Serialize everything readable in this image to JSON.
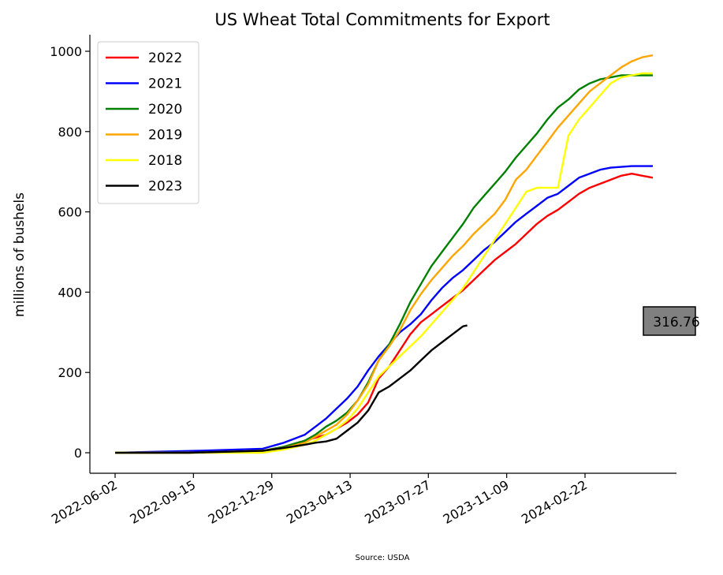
{
  "chart_data": {
    "type": "line",
    "title": "US Wheat Total Commitments for Export",
    "ylabel": "millions of bushels",
    "source": "Source: USDA",
    "ylim": [
      -45,
      1040
    ],
    "yticks": [
      0,
      200,
      400,
      600,
      800,
      1000
    ],
    "xlim": [
      0,
      51
    ],
    "xticks": [
      {
        "x": 0,
        "label": "2022-06-02"
      },
      {
        "x": 7.43,
        "label": "2022-09-15"
      },
      {
        "x": 14.86,
        "label": "2022-12-29"
      },
      {
        "x": 22.29,
        "label": "2023-04-13"
      },
      {
        "x": 29.71,
        "label": "2023-07-27"
      },
      {
        "x": 37.14,
        "label": "2023-11-09"
      },
      {
        "x": 44.57,
        "label": "2024-02-22"
      }
    ],
    "legend_position": "upper-left",
    "series": [
      {
        "name": "2022",
        "color": "#ff0000",
        "x": [
          0,
          7,
          14,
          16,
          18,
          20,
          21,
          22,
          23,
          24,
          25,
          26,
          27,
          28,
          29,
          30,
          31,
          32,
          33,
          34,
          35,
          36,
          37,
          38,
          39,
          40,
          41,
          42,
          43,
          44,
          45,
          46,
          47,
          48,
          49,
          50,
          51
        ],
        "y": [
          0,
          0,
          5,
          15,
          30,
          45,
          60,
          75,
          95,
          125,
          185,
          215,
          255,
          295,
          325,
          345,
          365,
          385,
          405,
          430,
          455,
          480,
          500,
          520,
          545,
          570,
          590,
          605,
          625,
          645,
          660,
          670,
          680,
          690,
          695,
          690,
          685
        ]
      },
      {
        "name": "2021",
        "color": "#0000ff",
        "x": [
          0,
          8,
          14,
          16,
          17,
          18,
          19,
          20,
          21,
          22,
          23,
          24,
          25,
          26,
          27,
          28,
          29,
          30,
          31,
          32,
          33,
          34,
          35,
          36,
          37,
          38,
          39,
          40,
          41,
          42,
          43,
          44,
          45,
          46,
          47,
          48,
          49,
          50,
          51
        ],
        "y": [
          0,
          5,
          10,
          25,
          35,
          45,
          65,
          85,
          110,
          135,
          165,
          205,
          240,
          270,
          300,
          320,
          345,
          380,
          410,
          435,
          455,
          480,
          505,
          525,
          550,
          575,
          595,
          615,
          635,
          645,
          665,
          685,
          695,
          705,
          710,
          712,
          714,
          714,
          714
        ]
      },
      {
        "name": "2020",
        "color": "#008000",
        "x": [
          0,
          7,
          14,
          16,
          18,
          19,
          20,
          21,
          22,
          23,
          24,
          25,
          26,
          27,
          28,
          29,
          30,
          31,
          32,
          33,
          34,
          35,
          36,
          37,
          38,
          39,
          40,
          41,
          42,
          43,
          44,
          45,
          46,
          47,
          48,
          49,
          50,
          51
        ],
        "y": [
          0,
          0,
          5,
          15,
          30,
          45,
          65,
          80,
          100,
          130,
          175,
          230,
          270,
          320,
          375,
          420,
          465,
          500,
          535,
          570,
          610,
          640,
          670,
          700,
          735,
          765,
          795,
          830,
          860,
          880,
          905,
          920,
          930,
          935,
          940,
          940,
          940,
          940
        ]
      },
      {
        "name": "2019",
        "color": "#ffa500",
        "x": [
          0,
          7,
          14,
          16,
          18,
          19,
          20,
          21,
          22,
          23,
          24,
          25,
          26,
          27,
          28,
          29,
          30,
          31,
          32,
          33,
          34,
          35,
          36,
          37,
          38,
          39,
          40,
          41,
          42,
          43,
          44,
          45,
          46,
          47,
          48,
          49,
          50,
          51
        ],
        "y": [
          0,
          0,
          5,
          12,
          25,
          40,
          55,
          70,
          95,
          130,
          170,
          230,
          265,
          305,
          355,
          395,
          430,
          460,
          490,
          515,
          545,
          570,
          595,
          630,
          680,
          705,
          740,
          775,
          810,
          840,
          870,
          900,
          920,
          940,
          960,
          975,
          985,
          990
        ]
      },
      {
        "name": "2018",
        "color": "#ffff00",
        "x": [
          0,
          7,
          14,
          16,
          18,
          19,
          20,
          21,
          22,
          23,
          24,
          25,
          26,
          27,
          28,
          29,
          30,
          31,
          32,
          33,
          34,
          35,
          36,
          37,
          38,
          39,
          40,
          41,
          42,
          43,
          44,
          45,
          46,
          47,
          48,
          49,
          50,
          51
        ],
        "y": [
          0,
          0,
          0,
          8,
          20,
          30,
          45,
          60,
          80,
          110,
          150,
          190,
          215,
          240,
          265,
          290,
          320,
          350,
          380,
          410,
          450,
          490,
          530,
          570,
          610,
          650,
          660,
          660,
          660,
          790,
          830,
          860,
          890,
          920,
          935,
          940,
          945,
          945
        ]
      },
      {
        "name": "2023",
        "color": "#000000",
        "x": [
          0,
          7,
          14,
          16,
          18,
          19,
          20,
          21,
          22,
          23,
          24,
          25,
          26,
          27,
          28,
          29,
          30,
          31,
          32,
          33,
          33.4
        ],
        "y": [
          0,
          0,
          5,
          12,
          20,
          25,
          28,
          35,
          55,
          75,
          105,
          150,
          165,
          185,
          205,
          230,
          255,
          275,
          295,
          315,
          317
        ]
      }
    ],
    "callout": {
      "label": "316.76",
      "value": 316.76
    }
  }
}
